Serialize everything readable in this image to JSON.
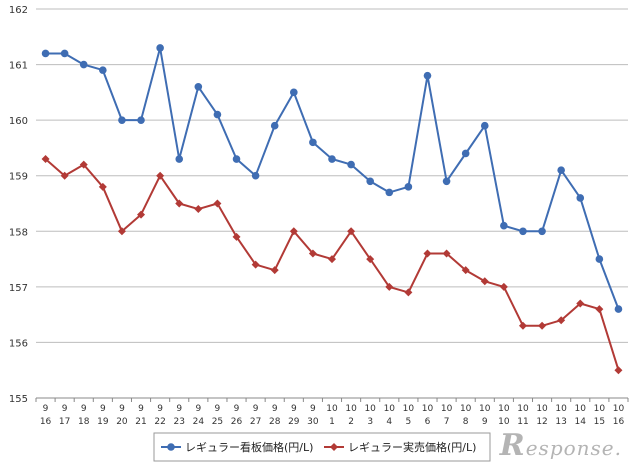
{
  "chart_data": {
    "type": "line",
    "x_month": [
      "9",
      "9",
      "9",
      "9",
      "9",
      "9",
      "9",
      "9",
      "9",
      "9",
      "9",
      "9",
      "9",
      "9",
      "9",
      "10",
      "10",
      "10",
      "10",
      "10",
      "10",
      "10",
      "10",
      "10",
      "10",
      "10",
      "10",
      "10",
      "10",
      "10",
      "10"
    ],
    "x_day": [
      "16",
      "17",
      "18",
      "19",
      "20",
      "21",
      "22",
      "23",
      "24",
      "25",
      "26",
      "27",
      "28",
      "29",
      "30",
      "1",
      "2",
      "3",
      "4",
      "5",
      "6",
      "7",
      "8",
      "9",
      "10",
      "11",
      "12",
      "13",
      "14",
      "15",
      "16"
    ],
    "ylim": [
      155,
      162
    ],
    "yticks": [
      155,
      156,
      157,
      158,
      159,
      160,
      161,
      162
    ],
    "grid": true,
    "legend_position": "bottom",
    "series": [
      {
        "name": "レギュラー看板価格(円/L)",
        "color": "#3f6db3",
        "marker": "circle",
        "values": [
          161.2,
          161.2,
          161.0,
          160.9,
          160.0,
          160.0,
          161.3,
          159.3,
          160.6,
          160.1,
          159.3,
          159.0,
          159.9,
          160.5,
          159.6,
          159.3,
          159.2,
          158.9,
          158.7,
          158.8,
          160.8,
          158.9,
          159.4,
          159.9,
          158.1,
          158.0,
          158.0,
          159.1,
          158.6,
          157.5,
          156.6
        ]
      },
      {
        "name": "レギュラー実売価格(円/L)",
        "color": "#b23a36",
        "marker": "diamond",
        "values": [
          159.3,
          159.0,
          159.2,
          158.8,
          158.0,
          158.3,
          159.0,
          158.5,
          158.4,
          158.5,
          157.9,
          157.4,
          157.3,
          158.0,
          157.6,
          157.5,
          158.0,
          157.5,
          157.0,
          156.9,
          157.6,
          157.6,
          157.3,
          157.1,
          157.0,
          156.3,
          156.3,
          156.4,
          156.7,
          156.6,
          155.5
        ]
      }
    ]
  },
  "watermark": {
    "initial": "R",
    "rest": "esponse."
  }
}
